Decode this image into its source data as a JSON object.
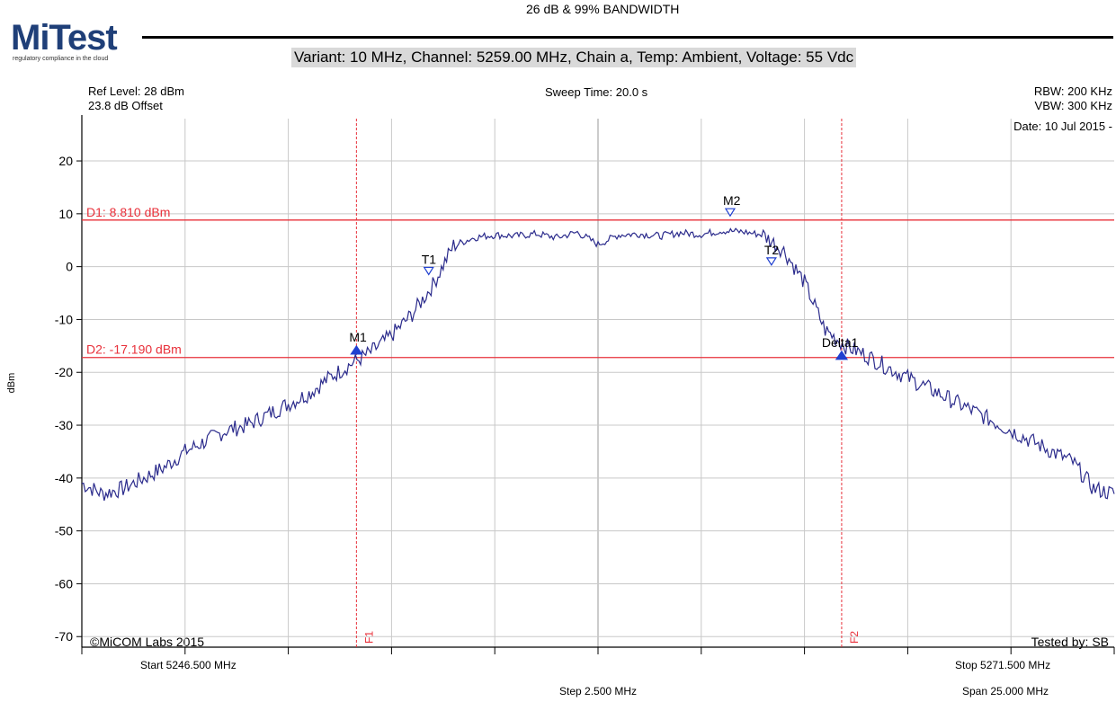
{
  "logo": {
    "text": "MiTest",
    "tagline": "regulatory compliance in the cloud"
  },
  "header": {
    "title": "26 dB & 99% BANDWIDTH",
    "subtitle": "Variant: 10 MHz, Channel: 5259.00 MHz, Chain a, Temp: Ambient, Voltage: 55 Vdc"
  },
  "info": {
    "ref_level": "Ref Level: 28 dBm",
    "offset": "23.8 dB Offset",
    "sweep_time": "Sweep Time: 20.0 s",
    "rbw": "RBW: 200 KHz",
    "vbw": "VBW: 300 KHz",
    "date": "Date: 10 Jul 2015 -",
    "copyright": "©MiCOM Labs 2015",
    "tested_by": "Tested by: SB",
    "start": "Start 5246.500 MHz",
    "stop": "Stop 5271.500 MHz",
    "step": "Step 2.500 MHz",
    "span": "Span 25.000 MHz"
  },
  "colors": {
    "trace": "#2b2b8c",
    "marker_line": "#e8303a",
    "grid": "#c8c8c8",
    "marker": "#2040d0"
  },
  "chart_data": {
    "type": "line",
    "xlabel": "",
    "ylabel": "dBm",
    "xlim": [
      5246.5,
      5271.5
    ],
    "ylim": [
      -72,
      28
    ],
    "yticks": [
      20,
      10,
      0,
      -10,
      -20,
      -30,
      -40,
      -50,
      -60,
      -70
    ],
    "grid": true,
    "series": [
      {
        "x": [
          5246.5,
          5247.0,
          5247.5,
          5248.0,
          5248.5,
          5249.0,
          5249.5,
          5250.0,
          5250.5,
          5251.0,
          5251.5,
          5252.0,
          5252.5,
          5253.0,
          5253.5,
          5254.0,
          5254.5,
          5255.0,
          5255.5,
          5256.0,
          5256.5,
          5257.0,
          5257.5,
          5258.0,
          5258.5,
          5259.0,
          5259.5,
          5260.0,
          5260.5,
          5261.0,
          5261.5,
          5262.0,
          5262.5,
          5263.0,
          5263.5,
          5264.0,
          5264.5,
          5265.0,
          5265.5,
          5266.0,
          5266.5,
          5267.0,
          5267.5,
          5268.0,
          5268.5,
          5269.0,
          5269.5,
          5270.0,
          5270.5,
          5271.0,
          5271.5
        ],
        "values": [
          -41,
          -43,
          -42,
          -40,
          -38,
          -35,
          -33,
          -31,
          -30,
          -28,
          -26,
          -24,
          -21,
          -18.5,
          -16.2,
          -13,
          -9,
          -3.5,
          4,
          5.5,
          6,
          5.8,
          6.2,
          5.5,
          6.5,
          4.2,
          6,
          6.2,
          5.8,
          6.4,
          6.1,
          6.8,
          6.6,
          6,
          3,
          -3,
          -12,
          -15,
          -16.8,
          -19,
          -21,
          -23,
          -25,
          -27,
          -29,
          -31,
          -33,
          -35,
          -37,
          -42,
          -43
        ]
      }
    ],
    "display_lines": [
      {
        "label": "D1: 8.810 dBm",
        "value": 8.81
      },
      {
        "label": "D2: -17.190 dBm",
        "value": -17.19
      }
    ],
    "freq_lines": [
      {
        "label": "F1",
        "x": 5253.15
      },
      {
        "label": "F2",
        "x": 5264.9
      }
    ],
    "markers": [
      {
        "label": "M1",
        "x": 5253.15,
        "y": -16.2,
        "filled": true
      },
      {
        "label": "T1",
        "x": 5254.9,
        "y": -1.5,
        "filled": false
      },
      {
        "label": "M2",
        "x": 5262.2,
        "y": 9.6,
        "filled": false
      },
      {
        "label": "T2",
        "x": 5263.2,
        "y": 0.3,
        "filled": false
      },
      {
        "label": "Delta1",
        "x": 5264.9,
        "y": -17.2,
        "filled": true
      }
    ]
  }
}
